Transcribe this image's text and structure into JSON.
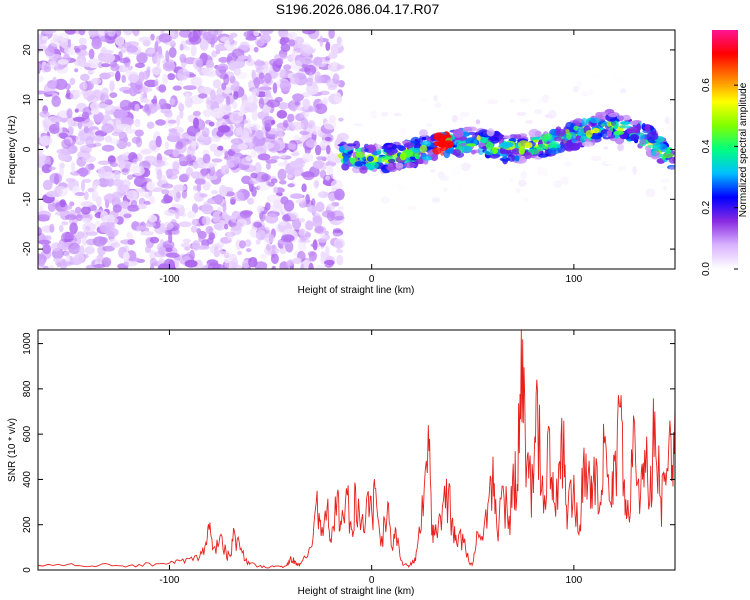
{
  "title": "S196.2026.086.04.17.R07",
  "chart_data": [
    {
      "type": "heatmap",
      "xlabel": "Height of straight line (km)",
      "ylabel": "Frequency (Hz)",
      "xlim": [
        -165,
        150
      ],
      "ylim": [
        -24,
        24
      ],
      "xticks": [
        "-100",
        "0",
        "100"
      ],
      "yticks": [
        "-20",
        "-10",
        "0",
        "10",
        "20"
      ],
      "colorbar": {
        "label": "Normalized spectral amplitude",
        "range": [
          0,
          0.78
        ],
        "ticks": [
          "0.0",
          "0.2",
          "0.4",
          "0.6"
        ],
        "colors": [
          "#ffffff",
          "#d9b3ff",
          "#8a2be2",
          "#0000ff",
          "#00bfff",
          "#00ff80",
          "#80ff00",
          "#ffff00",
          "#ff8000",
          "#ff0000",
          "#ff1493"
        ]
      },
      "regions": [
        {
          "x": [
            -165,
            -15
          ],
          "description_level": "noise",
          "amplitude": 0.05
        },
        {
          "x": [
            -15,
            150
          ],
          "ridge_frequency": [
            -1,
            -2,
            -1,
            1,
            2,
            0,
            1,
            3,
            5,
            3,
            -2
          ],
          "amplitude": 0.35,
          "peak_amplitude": 0.7,
          "peak_x": 35
        }
      ]
    },
    {
      "type": "line",
      "xlabel": "Height of straight line (km)",
      "ylabel": "SNR (10 * v/v)",
      "xlim": [
        -165,
        150
      ],
      "ylim": [
        0,
        1060
      ],
      "xticks": [
        "-100",
        "0",
        "100"
      ],
      "yticks": [
        "0",
        "200",
        "400",
        "600",
        "800",
        "1000"
      ],
      "color": "#e8201c",
      "series": [
        {
          "x": [
            -165,
            -150,
            -140,
            -130,
            -120,
            -110,
            -100,
            -95,
            -90,
            -85,
            -82,
            -80,
            -78,
            -75,
            -72,
            -70,
            -68,
            -65,
            -62,
            -60,
            -55,
            -50,
            -45,
            -42,
            -40,
            -38,
            -36,
            -35,
            -30,
            -27,
            -25,
            -22,
            -20,
            -17,
            -15,
            -12,
            -10,
            -8,
            -5,
            -2,
            0,
            2,
            5,
            8,
            10,
            12,
            15,
            18,
            20,
            22,
            25,
            28,
            30,
            32,
            35,
            38,
            40,
            42,
            45,
            48,
            50,
            52,
            55,
            58,
            60,
            62,
            65,
            68,
            70,
            72,
            74,
            76,
            78,
            80,
            82,
            85,
            88,
            90,
            93,
            95,
            97,
            100,
            103,
            105,
            108,
            110,
            113,
            115,
            118,
            120,
            123,
            125,
            127,
            130,
            133,
            135,
            138,
            140,
            143,
            145,
            148,
            150
          ],
          "y": [
            20,
            25,
            15,
            25,
            20,
            30,
            30,
            40,
            50,
            60,
            120,
            210,
            100,
            150,
            80,
            60,
            175,
            90,
            50,
            30,
            20,
            15,
            15,
            20,
            60,
            40,
            25,
            30,
            100,
            350,
            150,
            280,
            120,
            340,
            200,
            330,
            180,
            370,
            220,
            340,
            260,
            360,
            150,
            300,
            100,
            180,
            40,
            20,
            30,
            80,
            330,
            640,
            200,
            170,
            280,
            350,
            230,
            120,
            160,
            40,
            30,
            170,
            130,
            320,
            500,
            180,
            370,
            240,
            470,
            380,
            1060,
            550,
            470,
            340,
            790,
            250,
            620,
            300,
            480,
            660,
            250,
            420,
            200,
            540,
            380,
            500,
            300,
            560,
            300,
            480,
            720,
            400,
            250,
            650,
            330,
            530,
            460,
            700,
            320,
            430,
            580,
            730
          ]
        }
      ]
    }
  ]
}
